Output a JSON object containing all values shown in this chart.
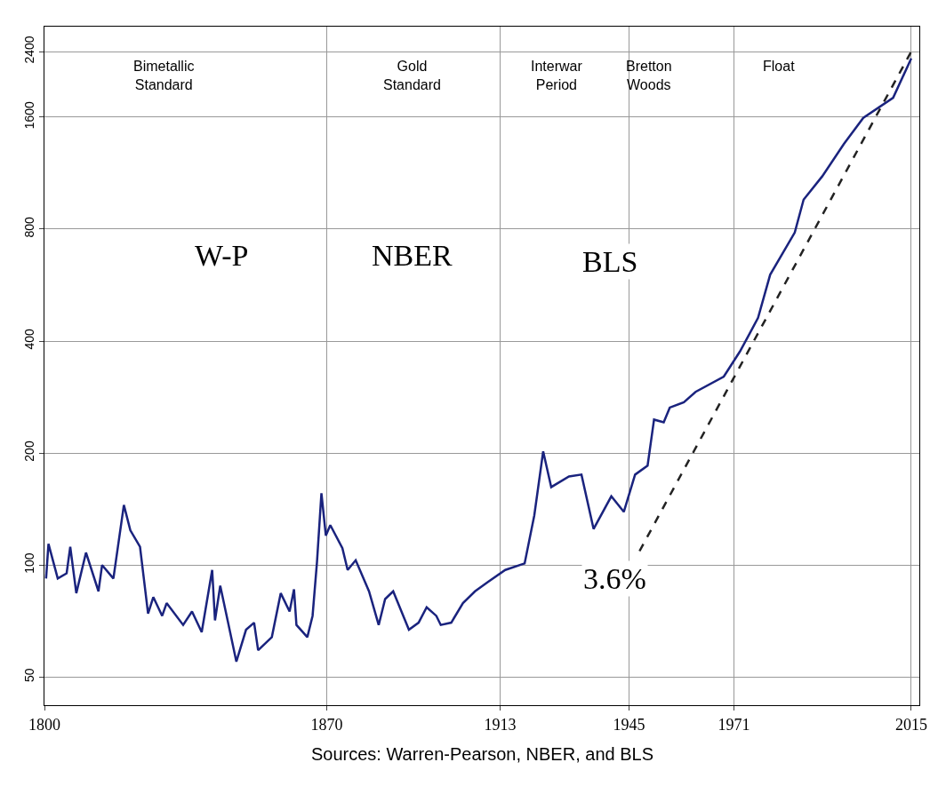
{
  "chart_data": {
    "type": "line",
    "x": [
      1800.4,
      1801,
      1803.3,
      1805.5,
      1806.4,
      1807.9,
      1810.3,
      1813.4,
      1814.3,
      1817.1,
      1819.7,
      1821.3,
      1823.7,
      1825.7,
      1827,
      1829.2,
      1830.3,
      1834.4,
      1836.6,
      1839,
      1841.6,
      1842.3,
      1843.6,
      1847.6,
      1850,
      1852,
      1853,
      1856.4,
      1858.6,
      1860.8,
      1861.9,
      1862.5,
      1865.2,
      1866.5,
      1867.6,
      1868.7,
      1869.8,
      1870.9,
      1873.9,
      1875.2,
      1877.2,
      1880.5,
      1882.9,
      1884.5,
      1886.5,
      1890.4,
      1892.8,
      1894.8,
      1897.2,
      1898.3,
      1900.9,
      1903.8,
      1906.8,
      1910,
      1914.3,
      1919.1,
      1921.5,
      1923.7,
      1925.7,
      1930.1,
      1933.2,
      1936.2,
      1940.6,
      1943.7,
      1946.5,
      1949.6,
      1951.2,
      1953.6,
      1955.1,
      1958.6,
      1961.5,
      1968.5,
      1972.5,
      1974.7,
      1977,
      1980,
      1986.1,
      1988.3,
      1992.9,
      1998.3,
      2003.1,
      2010.5,
      2015
    ],
    "series": [
      {
        "color": "#1a237e",
        "values": [
          92,
          114,
          92,
          95,
          112,
          84,
          108,
          85,
          100,
          92,
          145,
          124,
          112,
          74,
          82,
          73,
          79,
          69,
          75,
          66,
          97,
          71,
          88,
          55,
          67,
          70,
          59,
          64,
          84,
          75,
          86,
          69,
          64,
          73,
          102,
          156,
          120,
          128,
          111,
          97,
          103,
          85,
          69,
          81,
          85,
          67,
          70,
          77,
          73,
          69,
          70,
          79,
          85,
          90,
          97,
          101,
          136,
          202,
          162,
          173,
          175,
          125,
          153,
          139,
          175,
          185,
          246,
          242,
          265,
          274,
          292,
          321,
          375,
          415,
          462,
          603,
          783,
          960,
          1108,
          1355,
          1592,
          1803,
          2300
        ]
      },
      {
        "color": "#222222",
        "line_style": "dashed",
        "x": [
          1947.6,
          2015
        ],
        "values": [
          109,
          2400
        ]
      }
    ],
    "log": "y",
    "xlim": [
      1800,
      2017
    ],
    "ylim": [
      42,
      2800
    ],
    "xticks": [
      1800,
      1870,
      1913,
      1945,
      1971,
      2015
    ],
    "yticks": [
      50,
      100,
      200,
      400,
      800,
      1600,
      2400
    ],
    "grid": true,
    "annotations": [
      "Bimetallic\nStandard",
      "Gold\nStandard",
      "Interwar\nPeriod",
      "Bretton\nWoods",
      "Float",
      "W-P",
      "NBER",
      "BLS",
      "3.6%",
      "Sources: Warren-Pearson, NBER, and BLS"
    ]
  }
}
